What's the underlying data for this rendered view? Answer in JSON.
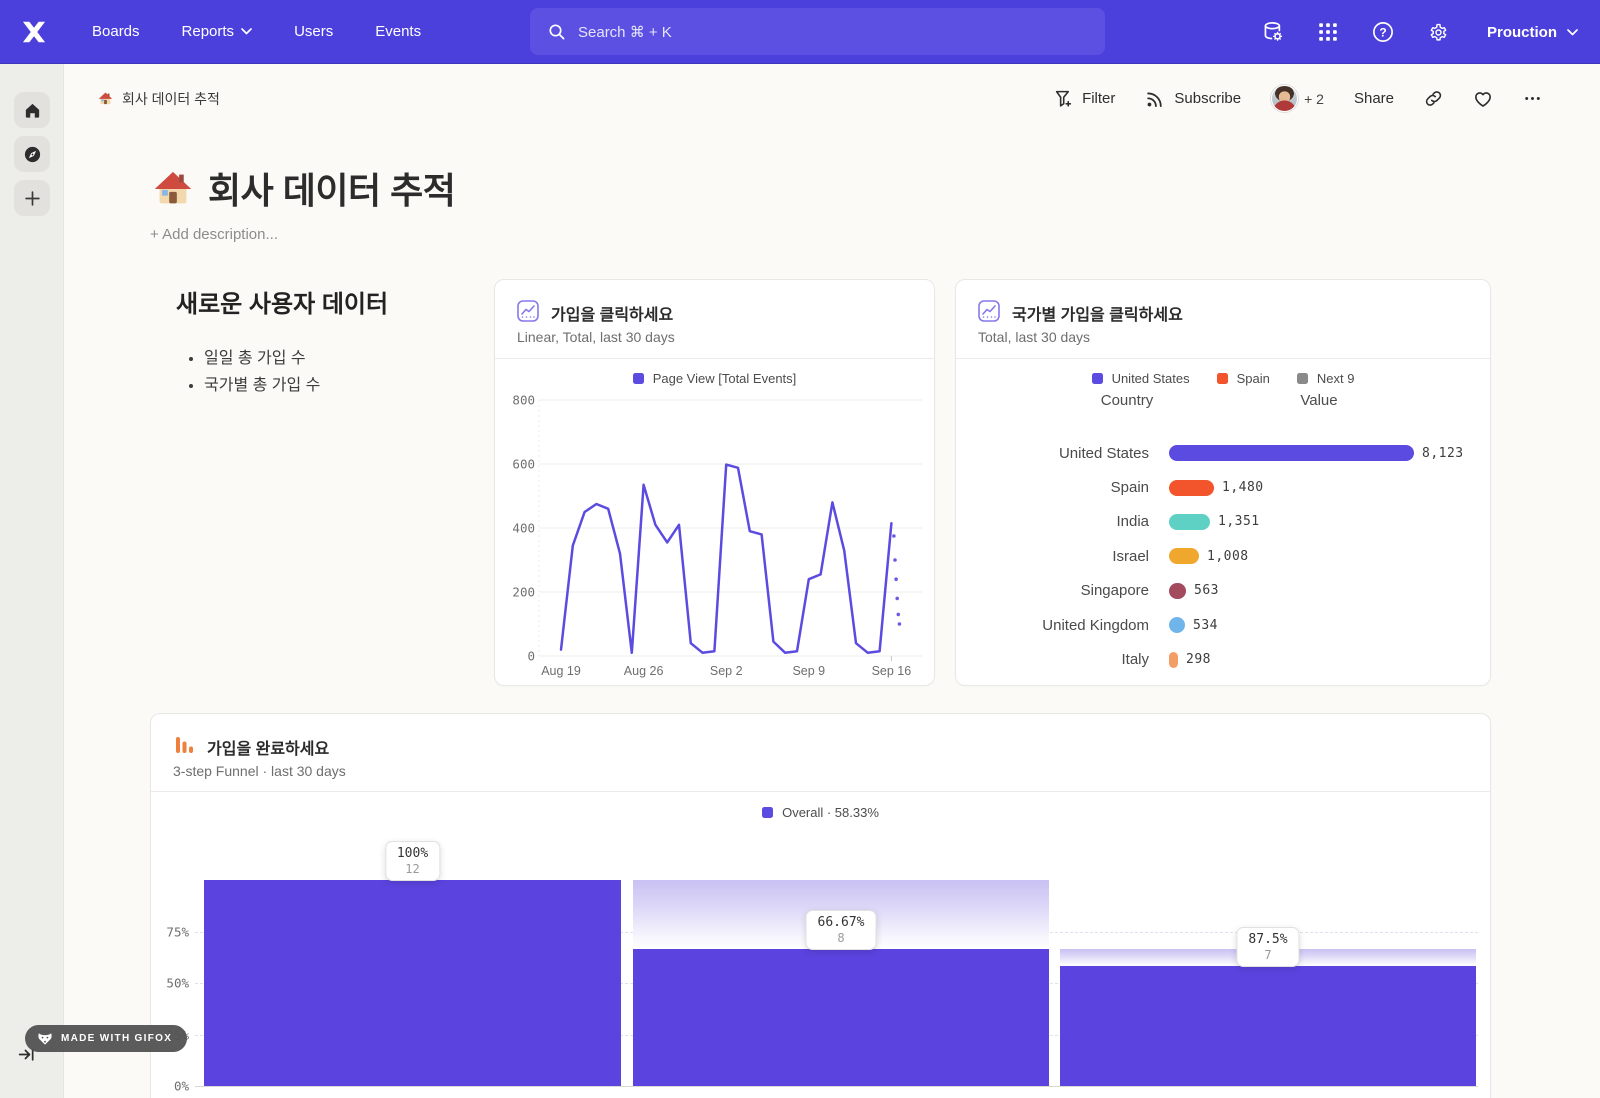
{
  "topnav": {
    "items": [
      {
        "label": "Boards"
      },
      {
        "label": "Reports",
        "has_chevron": true
      },
      {
        "label": "Users"
      },
      {
        "label": "Events"
      }
    ],
    "search_placeholder": "Search  ⌘ + K",
    "project_name": "Prouction"
  },
  "toolbar": {
    "breadcrumb": "회사 데이터 추적",
    "filter_label": "Filter",
    "subscribe_label": "Subscribe",
    "collaborators_more": "+ 2",
    "share_label": "Share"
  },
  "page": {
    "title": "회사 데이터 추적",
    "add_description_placeholder": "+ Add description..."
  },
  "text_section": {
    "heading": "새로운 사용자 데이터",
    "bullets": [
      "일일 총 가입 수",
      "국가별 총 가입 수"
    ]
  },
  "chart_data": [
    {
      "id": "signup-clicks",
      "type": "line",
      "title": "가입을 클릭하세요",
      "subtitle": "Linear, Total, last 30 days",
      "legend": [
        {
          "label": "Page View [Total Events]",
          "color": "#5b4be0"
        }
      ],
      "x_tick_labels": [
        "Aug 19",
        "Aug 26",
        "Sep 2",
        "Sep 9",
        "Sep 16"
      ],
      "y_ticks": [
        0,
        200,
        400,
        600,
        800
      ],
      "ylim": [
        0,
        800
      ],
      "grid": true,
      "line_color": "#5b4be0",
      "values": [
        20,
        345,
        450,
        475,
        460,
        320,
        10,
        535,
        410,
        355,
        410,
        40,
        10,
        15,
        598,
        588,
        390,
        380,
        45,
        10,
        15,
        240,
        255,
        480,
        330,
        40,
        10,
        15,
        415
      ],
      "dotted_tail_values": [
        375,
        300,
        240,
        180,
        130,
        100
      ]
    },
    {
      "id": "signups-by-country",
      "type": "bar",
      "title": "국가별 가입을 클릭하세요",
      "subtitle": "Total, last 30 days",
      "legend": [
        {
          "label": "United States",
          "color": "#5b4be0"
        },
        {
          "label": "Spain",
          "color": "#f2552c"
        },
        {
          "label": "Next 9",
          "color": "#8a8a8a"
        }
      ],
      "columns": [
        "Country",
        "Value"
      ],
      "rows": [
        {
          "country": "United States",
          "value_label": "8,123",
          "value": 8123,
          "color": "#5b4be0"
        },
        {
          "country": "Spain",
          "value_label": "1,480",
          "value": 1480,
          "color": "#f2552c"
        },
        {
          "country": "India",
          "value_label": "1,351",
          "value": 1351,
          "color": "#5fd0c4"
        },
        {
          "country": "Israel",
          "value_label": "1,008",
          "value": 1008,
          "color": "#efa82d"
        },
        {
          "country": "Singapore",
          "value_label": "563",
          "value": 563,
          "color": "#a34a5e"
        },
        {
          "country": "United Kingdom",
          "value_label": "534",
          "value": 534,
          "color": "#70b5ea"
        },
        {
          "country": "Italy",
          "value_label": "298",
          "value": 298,
          "color": "#f49e67"
        }
      ],
      "truncated_row_color": "#4d62e3"
    },
    {
      "id": "signup-funnel",
      "type": "funnel",
      "title": "가입을 완료하세요",
      "subtitle": "3-step Funnel · last 30 days",
      "legend": [
        {
          "label": "Overall · 58.33%",
          "color": "#5b4be0"
        }
      ],
      "overall_conversion": "58.33%",
      "y_tick_labels": [
        "0%",
        "25%",
        "50%",
        "75%"
      ],
      "bar_color": "#5b43df",
      "steps": [
        {
          "step_pct_label": "100%",
          "count_label": "12",
          "count": 12,
          "height_pct": 100
        },
        {
          "step_pct_label": "66.67%",
          "count_label": "8",
          "count": 8,
          "height_pct": 66.67
        },
        {
          "step_pct_label": "87.5%",
          "count_label": "7",
          "count": 7,
          "height_pct": 58.33
        }
      ]
    }
  ],
  "watermark": {
    "label": "MADE WITH GIFOX"
  },
  "colors": {
    "accent_purple": "#4c40dd",
    "chart_purple": "#5b4be0",
    "funnel_icon_orange": "#ee7f3c"
  }
}
